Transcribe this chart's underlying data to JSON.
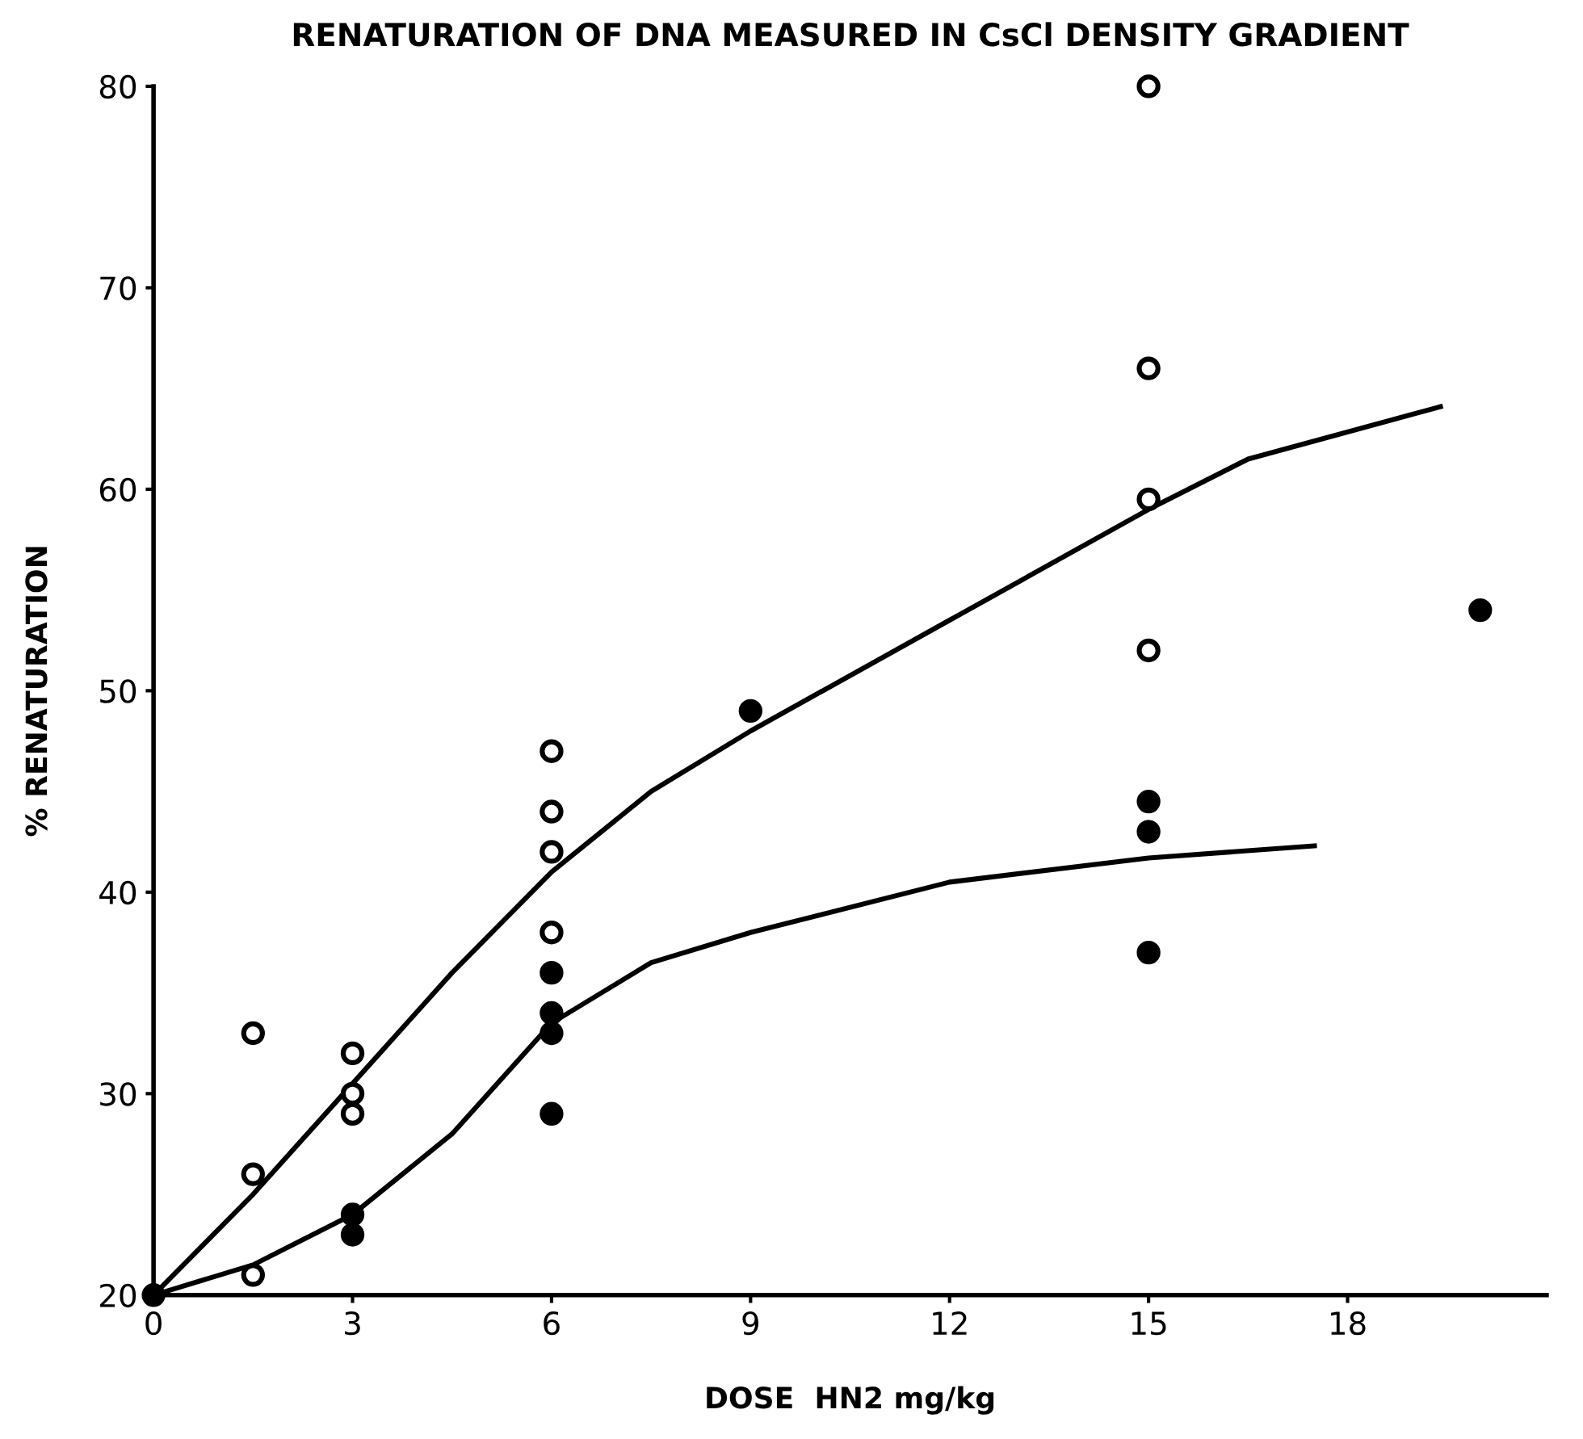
{
  "chart_data": {
    "type": "scatter",
    "title": "RENATURATION OF DNA MEASURED IN CsCl DENSITY GRADIENT",
    "xlabel": "DOSE  HN2 mg/kg",
    "ylabel": "% RENATURATION",
    "xlim": [
      0,
      21
    ],
    "ylim": [
      20,
      80
    ],
    "xticks": [
      0,
      3,
      6,
      9,
      12,
      15,
      18
    ],
    "yticks": [
      20,
      30,
      40,
      50,
      60,
      70,
      80
    ],
    "grid": false,
    "legend": false,
    "series": [
      {
        "marker": "circle",
        "color": "#ffffff",
        "x": [
          1.5,
          1.5,
          1.5,
          3,
          3,
          3,
          6,
          6,
          6,
          6,
          15,
          15,
          15,
          15
        ],
        "values": [
          33,
          26,
          21,
          32,
          30,
          29,
          47,
          44,
          42,
          38,
          80,
          66,
          59.5,
          52
        ]
      },
      {
        "marker": "circle",
        "color": "#000000",
        "x": [
          0,
          3,
          3,
          6,
          6,
          6,
          6,
          9,
          15,
          15,
          15,
          20
        ],
        "values": [
          20,
          24,
          23,
          36,
          34,
          33,
          29,
          49,
          44.5,
          43,
          37,
          54
        ]
      },
      {
        "type": "line",
        "marker": "none",
        "line_style": "solid",
        "color": "#000000",
        "x": [
          0,
          1.5,
          3,
          4.5,
          6,
          7.5,
          9,
          12,
          15,
          16.5,
          19.4
        ],
        "values": [
          20,
          25,
          30.5,
          36,
          41,
          45,
          48,
          53.5,
          59,
          61.5,
          64.1
        ]
      },
      {
        "type": "line",
        "marker": "none",
        "line_style": "solid",
        "color": "#000000",
        "x": [
          0,
          1.5,
          3,
          4.5,
          6,
          7.5,
          9,
          12,
          15,
          17.5
        ],
        "values": [
          20,
          21.5,
          24,
          28,
          33.5,
          36.5,
          38,
          40.5,
          41.7,
          42.3
        ]
      }
    ]
  }
}
